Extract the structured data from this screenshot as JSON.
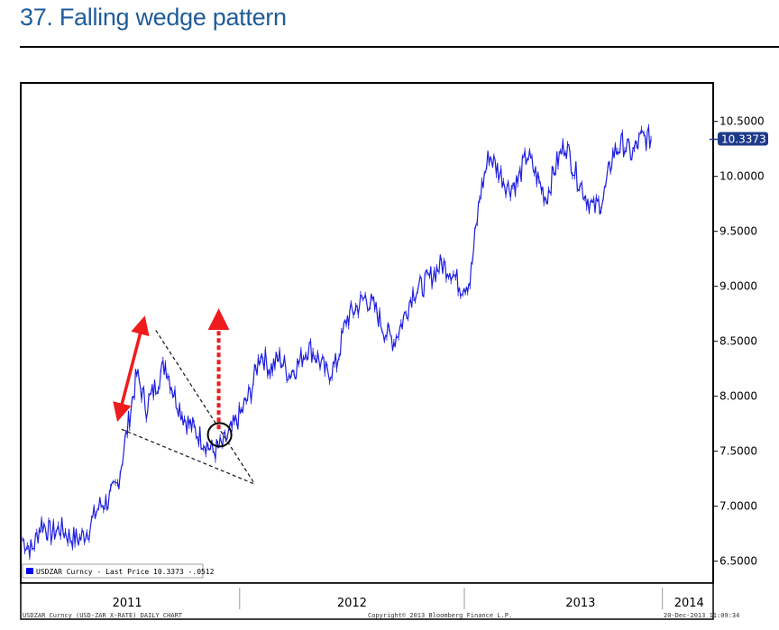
{
  "header": {
    "title": "37. Falling wedge pattern"
  },
  "chart_data": {
    "type": "line",
    "title": "37. Falling wedge pattern",
    "ylim": [
      6.3,
      10.85
    ],
    "xlim": [
      0,
      36
    ],
    "yticks": [
      {
        "value": 6.5,
        "label": "6.5000"
      },
      {
        "value": 7.0,
        "label": "7.0000"
      },
      {
        "value": 7.5,
        "label": "7.5000"
      },
      {
        "value": 8.0,
        "label": "8.0000"
      },
      {
        "value": 8.5,
        "label": "8.5000"
      },
      {
        "value": 9.0,
        "label": "9.0000"
      },
      {
        "value": 9.5,
        "label": "9.5000"
      },
      {
        "value": 10.0,
        "label": "10.0000"
      },
      {
        "value": 10.5,
        "label": "10.5000"
      }
    ],
    "xticks": [
      {
        "label": "2011",
        "value": 5.5
      },
      {
        "label": "2012",
        "value": 17.3
      },
      {
        "label": "2013",
        "value": 29.3
      },
      {
        "label": "2014",
        "value": 35.0
      }
    ],
    "year_dividers": [
      11.4,
      23.2,
      33.6
    ],
    "last_price": {
      "value": 10.3373,
      "label": "10.3373"
    },
    "legend": {
      "text": "USDZAR Curncy - Last Price 10.3373 -.0512",
      "color": "#0000ff"
    },
    "footer": {
      "left": "USDZAR Curncy (USD-ZAR X-RATE) DAILY CHART",
      "center": "Copyright© 2013 Bloomberg Finance L.P.",
      "right": "20-Dec-2013 11:09:34"
    },
    "grid": false,
    "series": [
      {
        "color": "#1f1fe0",
        "x": [
          0,
          0.5,
          1,
          1.5,
          2,
          2.5,
          3,
          3.5,
          4,
          4.5,
          5,
          5.5,
          6,
          6.5,
          7,
          7.5,
          8,
          8.5,
          9,
          9.5,
          10,
          10.5,
          11,
          11.5,
          12,
          12.5,
          13,
          13.5,
          14,
          14.5,
          15,
          15.5,
          16,
          16.5,
          17,
          17.5,
          18,
          18.5,
          19,
          19.5,
          20,
          20.5,
          21,
          21.5,
          22,
          22.5,
          23,
          23.5,
          24,
          24.5,
          25,
          25.5,
          26,
          26.5,
          27,
          27.5,
          28,
          28.5,
          29,
          29.5,
          30,
          30.5,
          31,
          31.5,
          32,
          32.5,
          33
        ],
        "y": [
          6.7,
          6.6,
          6.85,
          6.75,
          6.8,
          6.72,
          6.7,
          6.8,
          7.0,
          7.05,
          7.2,
          7.7,
          8.2,
          7.9,
          8.1,
          8.3,
          8.0,
          7.8,
          7.7,
          7.6,
          7.5,
          7.55,
          7.7,
          7.85,
          8.05,
          8.4,
          8.25,
          8.35,
          8.2,
          8.3,
          8.45,
          8.35,
          8.2,
          8.3,
          8.7,
          8.8,
          8.9,
          8.8,
          8.6,
          8.5,
          8.7,
          8.95,
          9.0,
          9.1,
          9.2,
          9.15,
          9.0,
          9.05,
          9.8,
          10.2,
          10.05,
          9.9,
          9.95,
          10.2,
          10.0,
          9.8,
          10.1,
          10.3,
          10.05,
          9.85,
          9.7,
          9.8,
          10.2,
          10.3,
          10.2,
          10.35,
          10.34
        ]
      }
    ],
    "annotations": {
      "wedge_upper": [
        [
          7.0,
          8.6
        ],
        [
          12.2,
          7.2
        ]
      ],
      "wedge_lower": [
        [
          5.2,
          7.7
        ],
        [
          12.2,
          7.2
        ]
      ],
      "breakout_circle": {
        "x": 10.35,
        "y": 7.65
      },
      "solid_arrow": [
        [
          5.1,
          7.85
        ],
        [
          6.3,
          8.65
        ]
      ],
      "dotted_arrow": [
        [
          10.3,
          7.7
        ],
        [
          10.3,
          8.75
        ]
      ]
    }
  }
}
